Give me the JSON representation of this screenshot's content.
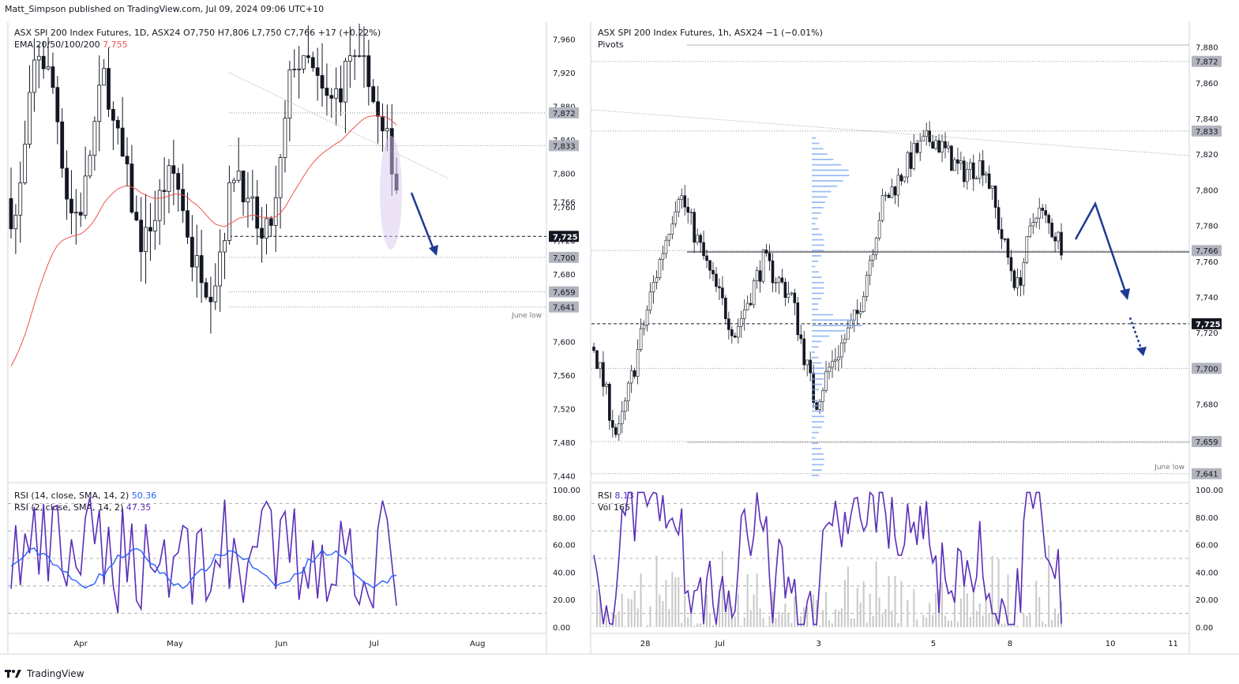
{
  "header": {
    "publisher": "Matt_Simpson published on TradingView.com, Jul 09, 2024 09:06 UTC+10"
  },
  "footer": {
    "brand": "TradingView"
  },
  "colors": {
    "accent_line": "#3b3bff",
    "rsi14": "#2962ff",
    "rsi2": "#5b2fb8",
    "ema": "#ef5350",
    "arrow": "#1f3a93",
    "volume_profile": "#7aa7f0",
    "label_gray": "#7a7a7a",
    "label_dark": "#131722"
  },
  "left_panel": {
    "title": "ASX SPI 200 Index Futures, 1D, ASX24",
    "ohlc": {
      "o": "O7,750",
      "h": "H7,806",
      "l": "L7,750",
      "c": "C7,766",
      "chg": "+17 (+0.22%)"
    },
    "ema_label": "EMA 20/50/100/200",
    "ema_value": "7,755",
    "rsi14_label": "RSI (14, close, SMA, 14, 2)",
    "rsi14_value": "50.36",
    "rsi2_label": "RSI (2, close, SMA, 14, 2)",
    "rsi2_value": "47.35",
    "annotation": "June low"
  },
  "right_panel": {
    "title": "ASX SPI 200 Index Futures, 1h, ASX24",
    "chg": "−1 (−0.01%)",
    "pivots_label": "Pivots",
    "rsi_label": "RSI",
    "rsi_value": "8.13",
    "vol_label": "Vol",
    "vol_value": "165",
    "annotation": "June low"
  },
  "chart_data": [
    {
      "type": "candlestick",
      "title": "ASX SPI 200 Index Futures, 1D, ASX24",
      "x_ticks": [
        "Apr",
        "May",
        "Jun",
        "Jul",
        "Aug"
      ],
      "y_ticks": [
        7440,
        7480,
        7520,
        7560,
        7600,
        7640,
        7680,
        7720,
        7760,
        7800,
        7840,
        7880,
        7920,
        7960
      ],
      "ylim": [
        7432,
        7980
      ],
      "price_labels": [
        {
          "value": 7872,
          "text": "7,872",
          "style": "gray"
        },
        {
          "value": 7833,
          "text": "7,833",
          "style": "gray"
        },
        {
          "value": 7766,
          "text": "7,766",
          "style": "plain"
        },
        {
          "value": 7725,
          "text": "7,725",
          "style": "dark"
        },
        {
          "value": 7700,
          "text": "7,700",
          "style": "gray"
        },
        {
          "value": 7659,
          "text": "7,659",
          "style": "gray"
        },
        {
          "value": 7641,
          "text": "7,641",
          "style": "gray"
        }
      ],
      "ohlc_recent": {
        "open": 7750,
        "high": 7806,
        "low": 7750,
        "close": 7766
      },
      "ema_last": 7755,
      "rsi_ticks": [
        "100.00",
        "80.00",
        "60.00",
        "40.00",
        "20.00",
        "0.00"
      ],
      "rsi14_last": 50.36,
      "rsi2_last": 47.35
    },
    {
      "type": "candlestick",
      "title": "ASX SPI 200 Index Futures, 1h, ASX24",
      "x_ticks": [
        "28",
        "Jul",
        "3",
        "5",
        "8",
        "10",
        "11"
      ],
      "y_ticks": [
        7640,
        7660,
        7680,
        7700,
        7720,
        7740,
        7760,
        7780,
        7800,
        7820,
        7840,
        7860,
        7880
      ],
      "ylim": [
        7636,
        7894
      ],
      "price_labels": [
        {
          "value": 7872,
          "text": "7,872",
          "style": "gray"
        },
        {
          "value": 7833,
          "text": "7,833",
          "style": "gray"
        },
        {
          "value": 7766,
          "text": "7,766",
          "style": "gray"
        },
        {
          "value": 7725,
          "text": "7,725",
          "style": "dark"
        },
        {
          "value": 7700,
          "text": "7,700",
          "style": "gray"
        },
        {
          "value": 7659,
          "text": "7,659",
          "style": "gray"
        },
        {
          "value": 7641,
          "text": "7,641",
          "style": "gray"
        }
      ],
      "rsi_ticks": [
        "100.00",
        "80.00",
        "60.00",
        "40.00",
        "20.00",
        "0.00"
      ],
      "rsi_last": 8.13,
      "volume_last": 165
    }
  ]
}
